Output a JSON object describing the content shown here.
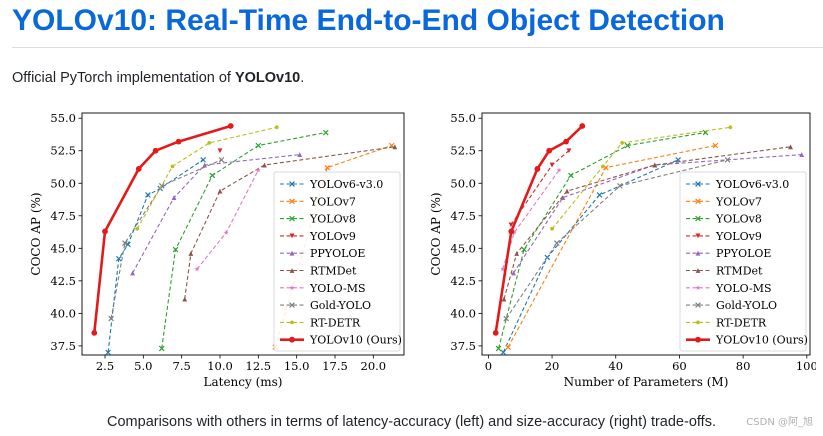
{
  "page": {
    "title": "YOLOv10: Real-Time End-to-End Object Detection",
    "intro_prefix": "Official PyTorch implementation of ",
    "intro_bold": "YOLOv10",
    "intro_suffix": ".",
    "caption": "Comparisons with others in terms of latency-accuracy (left) and size-accuracy (right) trade-offs.",
    "watermark": "CSDN @阿_旭"
  },
  "chart_data": [
    {
      "type": "line",
      "xlabel": "Latency (ms)",
      "ylabel": "COCO AP (%)",
      "xlim": [
        1.0,
        22.0
      ],
      "ylim": [
        36.8,
        55.4
      ],
      "xticks": [
        "2.5",
        "5.0",
        "7.5",
        "10.0",
        "12.5",
        "15.0",
        "17.5",
        "20.0"
      ],
      "xtick_values": [
        2.5,
        5.0,
        7.5,
        10.0,
        12.5,
        15.0,
        17.5,
        20.0
      ],
      "yticks": [
        "37.5",
        "40.0",
        "42.5",
        "45.0",
        "47.5",
        "50.0",
        "52.5",
        "55.0"
      ],
      "ytick_values": [
        37.5,
        40.0,
        42.5,
        45.0,
        47.5,
        50.0,
        52.5,
        55.0
      ],
      "grid": false,
      "legend_position": "lower-right",
      "series": [
        {
          "name": "YOLOv6-v3.0",
          "color": "#1f77b4",
          "marker": "x",
          "x": [
            2.7,
            3.4,
            4.0,
            5.3,
            6.1,
            8.9
          ],
          "y": [
            37.0,
            44.2,
            45.3,
            49.1,
            49.6,
            51.8
          ]
        },
        {
          "name": "YOLOv7",
          "color": "#ff7f0e",
          "marker": "x",
          "x": [
            13.6,
            17.0,
            21.2
          ],
          "y": [
            37.4,
            51.2,
            52.9
          ]
        },
        {
          "name": "YOLOv8",
          "color": "#2ca02c",
          "marker": "x",
          "x": [
            6.2,
            7.1,
            9.5,
            12.5,
            16.9
          ],
          "y": [
            37.3,
            44.9,
            50.6,
            52.9,
            53.9
          ]
        },
        {
          "name": "YOLOv9",
          "color": "#d62728",
          "marker": "v",
          "x": [
            10.0
          ],
          "y": [
            52.5
          ]
        },
        {
          "name": "PPYOLOE",
          "color": "#9467bd",
          "marker": "^",
          "x": [
            4.3,
            7.0,
            9.0,
            15.2
          ],
          "y": [
            43.1,
            48.9,
            51.4,
            52.2
          ]
        },
        {
          "name": "RTMDet",
          "color": "#8c564b",
          "marker": "^",
          "x": [
            7.7,
            8.1,
            10.0,
            12.9,
            21.4
          ],
          "y": [
            41.1,
            44.6,
            49.4,
            51.4,
            52.8
          ]
        },
        {
          "name": "YOLO-MS",
          "color": "#e377c2",
          "marker": "*",
          "x": [
            8.5,
            10.4,
            12.5
          ],
          "y": [
            43.4,
            46.2,
            51.0
          ]
        },
        {
          "name": "Gold-YOLO",
          "color": "#7f7f7f",
          "marker": "x",
          "x": [
            2.9,
            3.8,
            6.2,
            10.1
          ],
          "y": [
            39.6,
            45.4,
            49.8,
            51.8
          ]
        },
        {
          "name": "RT-DETR",
          "color": "#bcbd22",
          "marker": "o",
          "x": [
            4.6,
            6.9,
            9.3,
            13.7
          ],
          "y": [
            46.5,
            51.3,
            53.1,
            54.3
          ]
        },
        {
          "name": "YOLOv10 (Ours)",
          "color": "#e31a1c",
          "marker": "o",
          "x": [
            1.8,
            2.5,
            4.7,
            5.8,
            7.3,
            10.7
          ],
          "y": [
            38.5,
            46.3,
            51.1,
            52.5,
            53.2,
            54.4
          ]
        }
      ]
    },
    {
      "type": "line",
      "xlabel": "Number of Parameters (M)",
      "ylabel": "COCO AP (%)",
      "xlim": [
        -2.0,
        101.0
      ],
      "ylim": [
        36.8,
        55.4
      ],
      "xticks": [
        "0",
        "20",
        "40",
        "60",
        "80",
        "100"
      ],
      "xtick_values": [
        0,
        20,
        40,
        60,
        80,
        100
      ],
      "yticks": [
        "37.5",
        "40.0",
        "42.5",
        "45.0",
        "47.5",
        "50.0",
        "52.5",
        "55.0"
      ],
      "ytick_values": [
        37.5,
        40.0,
        42.5,
        45.0,
        47.5,
        50.0,
        52.5,
        55.0
      ],
      "grid": false,
      "legend_position": "lower-right",
      "series": [
        {
          "name": "YOLOv6-v3.0",
          "color": "#1f77b4",
          "marker": "x",
          "x": [
            4.7,
            18.5,
            34.9,
            59.6
          ],
          "y": [
            37.0,
            44.3,
            49.1,
            51.8
          ]
        },
        {
          "name": "YOLOv7",
          "color": "#ff7f0e",
          "marker": "x",
          "x": [
            6.2,
            36.9,
            71.3
          ],
          "y": [
            37.4,
            51.2,
            52.9
          ]
        },
        {
          "name": "YOLOv8",
          "color": "#2ca02c",
          "marker": "x",
          "x": [
            3.2,
            11.2,
            25.9,
            43.7,
            68.2
          ],
          "y": [
            37.3,
            44.9,
            50.6,
            52.9,
            53.9
          ]
        },
        {
          "name": "YOLOv9",
          "color": "#d62728",
          "marker": "v",
          "x": [
            7.1,
            20.0,
            25.3
          ],
          "y": [
            46.8,
            51.4,
            52.5
          ]
        },
        {
          "name": "PPYOLOE",
          "color": "#9467bd",
          "marker": "^",
          "x": [
            7.9,
            23.4,
            52.2,
            98.4
          ],
          "y": [
            43.1,
            48.9,
            51.4,
            52.2
          ]
        },
        {
          "name": "RTMDet",
          "color": "#8c564b",
          "marker": "^",
          "x": [
            4.9,
            8.9,
            24.7,
            52.3,
            94.9
          ],
          "y": [
            41.1,
            44.6,
            49.4,
            51.4,
            52.8
          ]
        },
        {
          "name": "YOLO-MS",
          "color": "#e377c2",
          "marker": "*",
          "x": [
            4.5,
            8.1,
            22.2
          ],
          "y": [
            43.4,
            46.2,
            51.0
          ]
        },
        {
          "name": "Gold-YOLO",
          "color": "#7f7f7f",
          "marker": "x",
          "x": [
            5.6,
            21.5,
            41.3,
            75.1
          ],
          "y": [
            39.6,
            45.4,
            49.8,
            51.8
          ]
        },
        {
          "name": "RT-DETR",
          "color": "#bcbd22",
          "marker": "o",
          "x": [
            20.0,
            36.0,
            42.0,
            76.0
          ],
          "y": [
            46.5,
            51.3,
            53.1,
            54.3
          ]
        },
        {
          "name": "YOLOv10 (Ours)",
          "color": "#e31a1c",
          "marker": "o",
          "x": [
            2.3,
            7.2,
            15.4,
            19.1,
            24.4,
            29.5
          ],
          "y": [
            38.5,
            46.3,
            51.1,
            52.5,
            53.2,
            54.4
          ]
        }
      ]
    }
  ]
}
